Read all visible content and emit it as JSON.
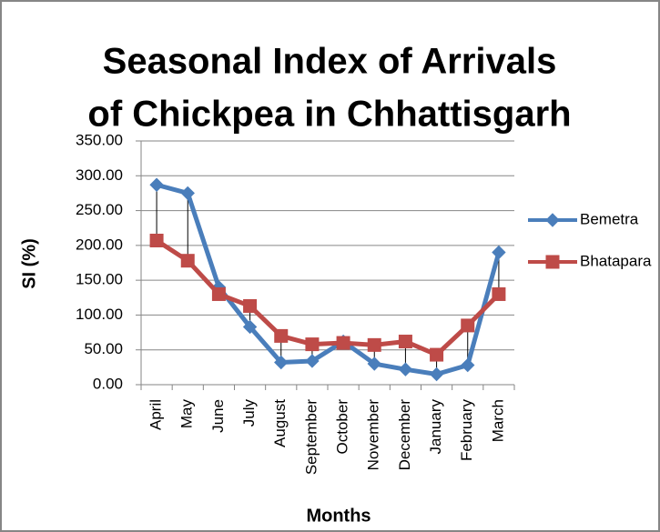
{
  "chart_data": {
    "type": "line",
    "title": [
      "Seasonal Index of Arrivals",
      "of Chickpea in Chhattisgarh"
    ],
    "x_label": "Months",
    "y_label": "SI (%)",
    "categories": [
      "April",
      "May",
      "June",
      "July",
      "August",
      "September",
      "October",
      "November",
      "December",
      "January",
      "February",
      "March"
    ],
    "series": [
      {
        "name": "Bemetra",
        "color": "#4a7ebb",
        "marker": "diamond",
        "values": [
          287,
          275,
          140,
          83,
          32,
          34,
          62,
          30,
          22,
          15,
          28,
          190
        ]
      },
      {
        "name": "Bhatapara",
        "color": "#be4b48",
        "marker": "square",
        "values": [
          207,
          178,
          130,
          113,
          70,
          58,
          60,
          57,
          62,
          43,
          85,
          130
        ]
      }
    ],
    "high_low_lines": true,
    "ylim": [
      0,
      350
    ],
    "yticks": [
      {
        "value": 0,
        "label": "0.00"
      },
      {
        "value": 50,
        "label": "50.00"
      },
      {
        "value": 100,
        "label": "100.00"
      },
      {
        "value": 150,
        "label": "150.00"
      },
      {
        "value": 200,
        "label": "200.00"
      },
      {
        "value": 250,
        "label": "250.00"
      },
      {
        "value": 300,
        "label": "300.00"
      },
      {
        "value": 350,
        "label": "350.00"
      }
    ],
    "grid": true,
    "legend": "right"
  }
}
